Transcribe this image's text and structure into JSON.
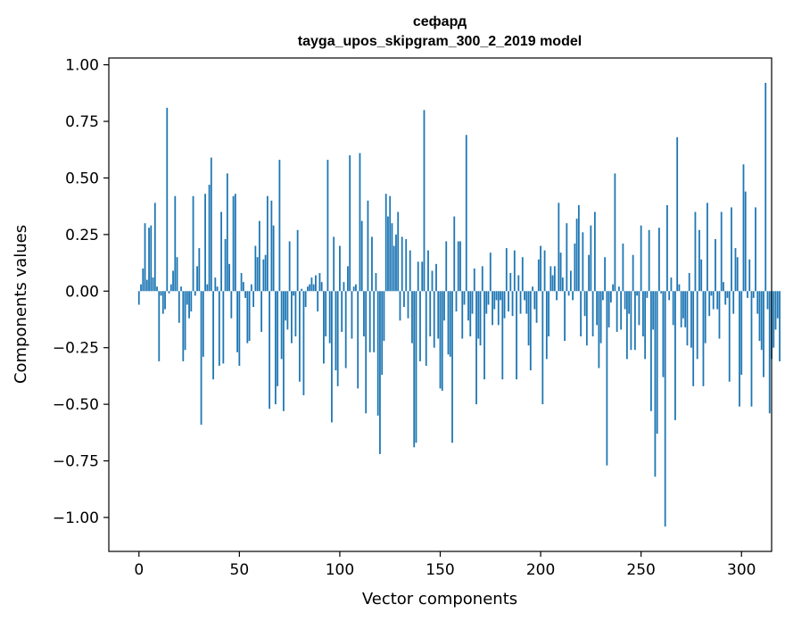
{
  "chart_data": {
    "type": "bar",
    "title_line1": "сефард",
    "title_line2": "tayga_upos_skipgram_300_2_2019 model",
    "xlabel": "Vector components",
    "ylabel": "Components values",
    "xlim": [
      -15,
      315
    ],
    "ylim": [
      -1.15,
      1.03
    ],
    "xticks": [
      0,
      50,
      100,
      150,
      200,
      250,
      300
    ],
    "xtick_labels": [
      "0",
      "50",
      "100",
      "150",
      "200",
      "250",
      "300"
    ],
    "yticks": [
      1.0,
      0.75,
      0.5,
      0.25,
      0.0,
      -0.25,
      -0.5,
      -0.75,
      -1.0
    ],
    "ytick_labels": [
      "1.00",
      "0.75",
      "0.50",
      "0.25",
      "0.00",
      "−0.25",
      "−0.50",
      "−0.75",
      "−1.00"
    ],
    "bar_color": "#1f77b4",
    "grid": false,
    "legend": "none",
    "series": [
      {
        "values": [
          -0.06,
          0.03,
          0.1,
          0.3,
          0.05,
          0.28,
          0.29,
          0.06,
          0.39,
          0.02,
          -0.31,
          -0.02,
          -0.1,
          -0.08,
          0.81,
          -0.01,
          0.03,
          0.09,
          0.42,
          0.15,
          -0.14,
          0.02,
          -0.31,
          -0.26,
          -0.06,
          -0.12,
          -0.09,
          0.42,
          -0.02,
          0.11,
          0.19,
          -0.59,
          -0.29,
          0.43,
          0.03,
          0.47,
          0.59,
          -0.39,
          0.06,
          0.02,
          -0.33,
          0.35,
          -0.32,
          0.23,
          0.52,
          0.12,
          -0.12,
          0.42,
          0.43,
          -0.27,
          -0.33,
          0.08,
          0.04,
          -0.03,
          -0.23,
          -0.22,
          0.03,
          -0.07,
          0.2,
          0.15,
          0.31,
          -0.18,
          0.14,
          0.16,
          0.42,
          -0.52,
          0.4,
          0.29,
          -0.5,
          -0.42,
          0.58,
          -0.3,
          -0.53,
          -0.13,
          -0.17,
          0.22,
          -0.23,
          -0.02,
          -0.2,
          0.27,
          -0.4,
          0.01,
          -0.46,
          -0.07,
          0.02,
          0.03,
          0.06,
          0.03,
          0.07,
          -0.09,
          0.08,
          0.04,
          -0.32,
          -0.2,
          0.58,
          -0.23,
          -0.58,
          0.24,
          -0.35,
          -0.42,
          0.2,
          -0.18,
          0.04,
          -0.34,
          0.11,
          0.6,
          -0.21,
          0.02,
          0.03,
          -0.43,
          0.61,
          0.31,
          -0.2,
          -0.54,
          0.4,
          -0.27,
          0.24,
          -0.27,
          0.08,
          -0.55,
          -0.72,
          -0.37,
          -0.22,
          0.43,
          0.33,
          0.42,
          0.3,
          0.2,
          0.25,
          0.35,
          -0.13,
          0.24,
          -0.07,
          0.23,
          -0.12,
          0.18,
          -0.23,
          -0.69,
          -0.67,
          0.13,
          -0.31,
          0.13,
          0.8,
          -0.33,
          0.18,
          -0.2,
          0.09,
          -0.25,
          0.12,
          -0.21,
          -0.43,
          -0.44,
          -0.13,
          0.22,
          -0.28,
          -0.29,
          -0.67,
          0.33,
          -0.09,
          0.22,
          0.22,
          -0.21,
          -0.06,
          0.69,
          -0.13,
          -0.2,
          -0.1,
          0.1,
          -0.5,
          -0.21,
          -0.24,
          0.11,
          -0.39,
          -0.1,
          -0.06,
          0.17,
          -0.15,
          -0.08,
          -0.04,
          -0.15,
          -0.04,
          -0.39,
          -0.12,
          0.19,
          -0.09,
          0.08,
          -0.11,
          0.18,
          -0.39,
          0.07,
          -0.1,
          0.15,
          -0.04,
          -0.1,
          -0.24,
          -0.35,
          0.02,
          -0.08,
          -0.14,
          0.14,
          0.2,
          -0.5,
          0.18,
          -0.3,
          -0.2,
          0.11,
          0.07,
          0.11,
          -0.04,
          0.39,
          0.17,
          0.06,
          -0.22,
          0.3,
          -0.02,
          0.09,
          -0.04,
          0.21,
          0.32,
          0.38,
          -0.2,
          0.26,
          -0.11,
          -0.24,
          0.16,
          0.29,
          -0.2,
          0.35,
          -0.15,
          -0.34,
          -0.23,
          -0.04,
          0.15,
          -0.77,
          -0.16,
          -0.05,
          0.03,
          0.52,
          -0.18,
          0.02,
          -0.17,
          0.21,
          -0.08,
          -0.3,
          -0.1,
          -0.26,
          0.16,
          -0.26,
          -0.02,
          -0.15,
          0.29,
          -0.2,
          -0.3,
          -0.03,
          0.27,
          -0.53,
          -0.17,
          -0.82,
          -0.63,
          0.28,
          -0.01,
          -0.38,
          -1.04,
          0.38,
          -0.04,
          0.06,
          -0.15,
          -0.57,
          0.68,
          0.03,
          -0.16,
          -0.12,
          -0.16,
          -0.24,
          0.08,
          -0.25,
          -0.42,
          0.35,
          -0.3,
          0.27,
          0.14,
          -0.42,
          -0.23,
          0.39,
          -0.11,
          -0.02,
          -0.08,
          0.23,
          -0.08,
          -0.21,
          0.35,
          0.04,
          -0.06,
          -0.03,
          -0.4,
          0.37,
          -0.1,
          0.19,
          0.15,
          -0.51,
          -0.37,
          0.56,
          0.44,
          -0.03,
          0.14,
          -0.51,
          -0.03,
          0.37,
          -0.1,
          -0.22,
          -0.26,
          -0.38,
          0.92,
          -0.08,
          -0.54,
          -0.3,
          -0.25,
          -0.17,
          -0.12,
          -0.31
        ]
      }
    ]
  }
}
